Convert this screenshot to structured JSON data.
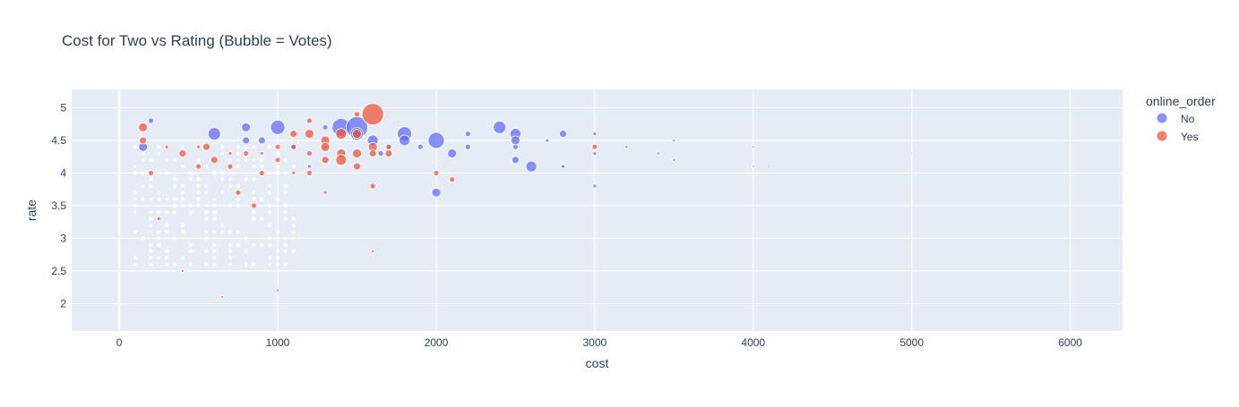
{
  "chart_data": {
    "type": "scatter",
    "title": "Cost for Two vs Rating (Bubble = Votes)",
    "xlabel": "cost",
    "ylabel": "rate",
    "xlim": [
      -300,
      6330
    ],
    "ylim": [
      1.58,
      5.28
    ],
    "x_ticks": [
      0,
      1000,
      2000,
      3000,
      4000,
      5000,
      6000
    ],
    "y_ticks": [
      2,
      2.5,
      3,
      3.5,
      4,
      4.5,
      5
    ],
    "grid": true,
    "legend": {
      "title": "online_order",
      "placement": "top-right",
      "entries": [
        "No",
        "Yes"
      ]
    },
    "colors": {
      "No": "#636efa",
      "Yes": "#ef553b",
      "plot_bg": "#e5ecf6",
      "grid": "#ffffff",
      "text": "#2a3f5f"
    },
    "series": [
      {
        "name": "No",
        "points": [
          [
            150,
            4.4,
            5
          ],
          [
            200,
            4.8,
            3
          ],
          [
            600,
            4.6,
            7
          ],
          [
            800,
            4.7,
            5
          ],
          [
            800,
            4.5,
            4
          ],
          [
            900,
            4.5,
            4
          ],
          [
            1000,
            4.7,
            8
          ],
          [
            1300,
            4.7,
            3
          ],
          [
            1400,
            4.7,
            10
          ],
          [
            1500,
            4.7,
            12
          ],
          [
            1500,
            4.6,
            7
          ],
          [
            1600,
            4.5,
            6
          ],
          [
            1650,
            4.3,
            3
          ],
          [
            1700,
            4.4,
            3
          ],
          [
            1800,
            4.6,
            8
          ],
          [
            1800,
            4.5,
            6
          ],
          [
            1900,
            4.4,
            3
          ],
          [
            2000,
            4.5,
            9
          ],
          [
            2000,
            3.7,
            5
          ],
          [
            2100,
            4.3,
            5
          ],
          [
            2200,
            4.6,
            3
          ],
          [
            2200,
            4.4,
            3
          ],
          [
            2400,
            4.7,
            7
          ],
          [
            2500,
            4.6,
            6
          ],
          [
            2500,
            4.5,
            5
          ],
          [
            2500,
            4.2,
            4
          ],
          [
            2500,
            4.4,
            3
          ],
          [
            2600,
            4.1,
            6
          ],
          [
            2700,
            4.5,
            2
          ],
          [
            2800,
            4.6,
            4
          ],
          [
            2800,
            4.1,
            2
          ],
          [
            3000,
            4.6,
            2
          ],
          [
            3000,
            4.3,
            2
          ],
          [
            3000,
            3.8,
            2
          ],
          [
            3200,
            4.4,
            1.5
          ],
          [
            3400,
            4.3,
            1.5
          ],
          [
            3500,
            4.5,
            1.5
          ],
          [
            3500,
            4.2,
            1.5
          ],
          [
            4000,
            4.4,
            1.2
          ],
          [
            4000,
            4.1,
            1.2
          ],
          [
            4100,
            4.1,
            1
          ],
          [
            5000,
            4.3,
            1
          ],
          [
            1200,
            4.1,
            2
          ],
          [
            1300,
            4.4,
            2
          ],
          [
            1100,
            4.4,
            3
          ]
        ]
      },
      {
        "name": "Yes",
        "points": [
          [
            150,
            4.7,
            5
          ],
          [
            150,
            4.5,
            4
          ],
          [
            200,
            4.0,
            3
          ],
          [
            300,
            4.4,
            2
          ],
          [
            400,
            4.3,
            4
          ],
          [
            500,
            4.1,
            3
          ],
          [
            550,
            4.4,
            4
          ],
          [
            600,
            4.2,
            4
          ],
          [
            700,
            4.1,
            3
          ],
          [
            750,
            3.7,
            3
          ],
          [
            800,
            4.3,
            3
          ],
          [
            850,
            3.5,
            3
          ],
          [
            900,
            4.0,
            3
          ],
          [
            1000,
            4.2,
            3
          ],
          [
            1100,
            4.6,
            4
          ],
          [
            1100,
            4.4,
            3
          ],
          [
            1200,
            4.8,
            3
          ],
          [
            1200,
            4.6,
            5
          ],
          [
            1300,
            4.5,
            5
          ],
          [
            1300,
            4.4,
            5
          ],
          [
            1300,
            4.2,
            4
          ],
          [
            1400,
            4.6,
            6
          ],
          [
            1400,
            4.3,
            5
          ],
          [
            1400,
            4.2,
            6
          ],
          [
            1500,
            4.9,
            3
          ],
          [
            1500,
            4.6,
            5
          ],
          [
            1500,
            4.3,
            5
          ],
          [
            1500,
            4.1,
            4
          ],
          [
            1600,
            4.9,
            12
          ],
          [
            1600,
            4.4,
            5
          ],
          [
            1600,
            4.3,
            4
          ],
          [
            1600,
            3.8,
            3
          ],
          [
            1700,
            4.3,
            4
          ],
          [
            1700,
            4.4,
            3
          ],
          [
            2000,
            4.0,
            3
          ],
          [
            2100,
            3.9,
            3
          ],
          [
            3000,
            4.4,
            3
          ],
          [
            1200,
            4.0,
            3
          ],
          [
            1000,
            4.4,
            3
          ],
          [
            1200,
            4.3,
            3
          ],
          [
            700,
            4.3,
            2
          ],
          [
            500,
            4.4,
            2
          ],
          [
            900,
            4.3,
            2
          ],
          [
            1100,
            4.0,
            2
          ],
          [
            1300,
            3.7,
            2
          ],
          [
            250,
            3.3,
            2
          ],
          [
            400,
            2.5,
            1.5
          ],
          [
            650,
            2.1,
            1.5
          ],
          [
            1000,
            2.2,
            1.5
          ],
          [
            1600,
            2.8,
            1.5
          ]
        ]
      }
    ]
  }
}
